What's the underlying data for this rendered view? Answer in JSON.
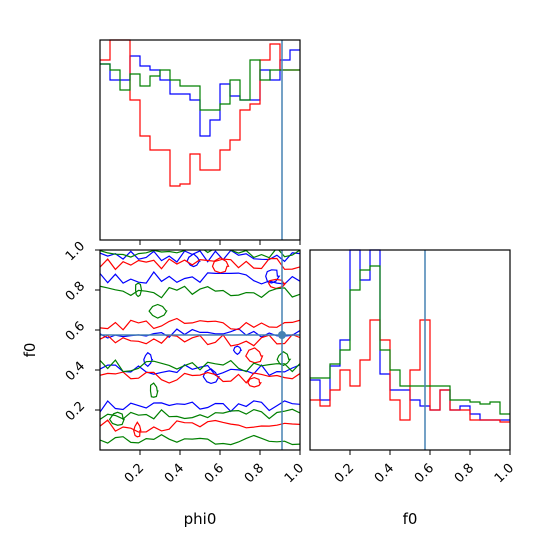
{
  "chart_data": {
    "type": "corner",
    "parameters": [
      "phi0",
      "f0"
    ],
    "truth": {
      "phi0": 0.91,
      "f0": 0.575
    },
    "axes": {
      "phi0": {
        "lim": [
          0.0,
          1.0
        ],
        "ticks": [
          0.2,
          0.4,
          0.6,
          0.8,
          1.0
        ],
        "tick_labels": [
          "0.2",
          "0.4",
          "0.6",
          "0.8",
          "1.0"
        ],
        "label": "phi0"
      },
      "f0": {
        "lim": [
          0.0,
          1.0
        ],
        "ticks": [
          0.2,
          0.4,
          0.6,
          0.8,
          1.0
        ],
        "tick_labels": [
          "0.2",
          "0.4",
          "0.6",
          "0.8",
          "1.0"
        ],
        "label": "f0"
      }
    },
    "f0_row_ticks": [
      "0.2",
      "0.4",
      "0.6",
      "0.8",
      "1.0"
    ],
    "series_colors": {
      "blue": "#0000ff",
      "red": "#ff0000",
      "green": "#008000",
      "truth": "#4682b4"
    },
    "hist_phi0": {
      "bin_edges": [
        0.0,
        0.05,
        0.1,
        0.15,
        0.2,
        0.25,
        0.3,
        0.35,
        0.4,
        0.45,
        0.5,
        0.55,
        0.6,
        0.65,
        0.7,
        0.75,
        0.8,
        0.85,
        0.9,
        0.95,
        1.0
      ],
      "ymax": 1.0,
      "series": [
        {
          "color": "blue",
          "values": [
            0.88,
            0.8,
            0.8,
            0.92,
            0.87,
            0.85,
            0.8,
            0.73,
            0.73,
            0.7,
            0.52,
            0.6,
            0.78,
            0.72,
            0.7,
            0.7,
            0.85,
            0.8,
            0.9,
            0.95
          ]
        },
        {
          "color": "red",
          "values": [
            0.9,
            1.0,
            1.0,
            0.7,
            0.52,
            0.45,
            0.45,
            0.27,
            0.28,
            0.43,
            0.35,
            0.35,
            0.45,
            0.5,
            0.65,
            0.68,
            0.9,
            0.98,
            0.85,
            0.85
          ]
        },
        {
          "color": "green",
          "values": [
            0.88,
            0.85,
            0.75,
            0.83,
            0.77,
            0.82,
            0.85,
            0.8,
            0.77,
            0.77,
            0.65,
            0.65,
            0.68,
            0.8,
            0.7,
            0.9,
            0.8,
            0.85,
            0.85,
            0.85
          ]
        }
      ]
    },
    "hist_f0": {
      "bin_edges": [
        0.0,
        0.05,
        0.1,
        0.15,
        0.2,
        0.25,
        0.3,
        0.35,
        0.4,
        0.45,
        0.5,
        0.55,
        0.6,
        0.65,
        0.7,
        0.75,
        0.8,
        0.85,
        0.9,
        0.95,
        1.0
      ],
      "ymax": 1.0,
      "series": [
        {
          "color": "blue",
          "values": [
            0.35,
            0.25,
            0.42,
            0.55,
            1.0,
            0.85,
            1.0,
            0.38,
            0.3,
            0.3,
            0.25,
            0.22,
            0.2,
            0.3,
            0.2,
            0.22,
            0.18,
            0.15,
            0.15,
            0.15
          ]
        },
        {
          "color": "red",
          "values": [
            0.25,
            0.22,
            0.3,
            0.4,
            0.32,
            0.45,
            0.65,
            0.55,
            0.25,
            0.15,
            0.4,
            0.65,
            0.2,
            0.3,
            0.2,
            0.2,
            0.15,
            0.15,
            0.15,
            0.14
          ]
        },
        {
          "color": "green",
          "values": [
            0.36,
            0.36,
            0.43,
            0.5,
            0.8,
            0.9,
            0.92,
            0.5,
            0.4,
            0.32,
            0.32,
            0.32,
            0.32,
            0.32,
            0.25,
            0.25,
            0.24,
            0.23,
            0.24,
            0.18
          ]
        }
      ]
    }
  }
}
